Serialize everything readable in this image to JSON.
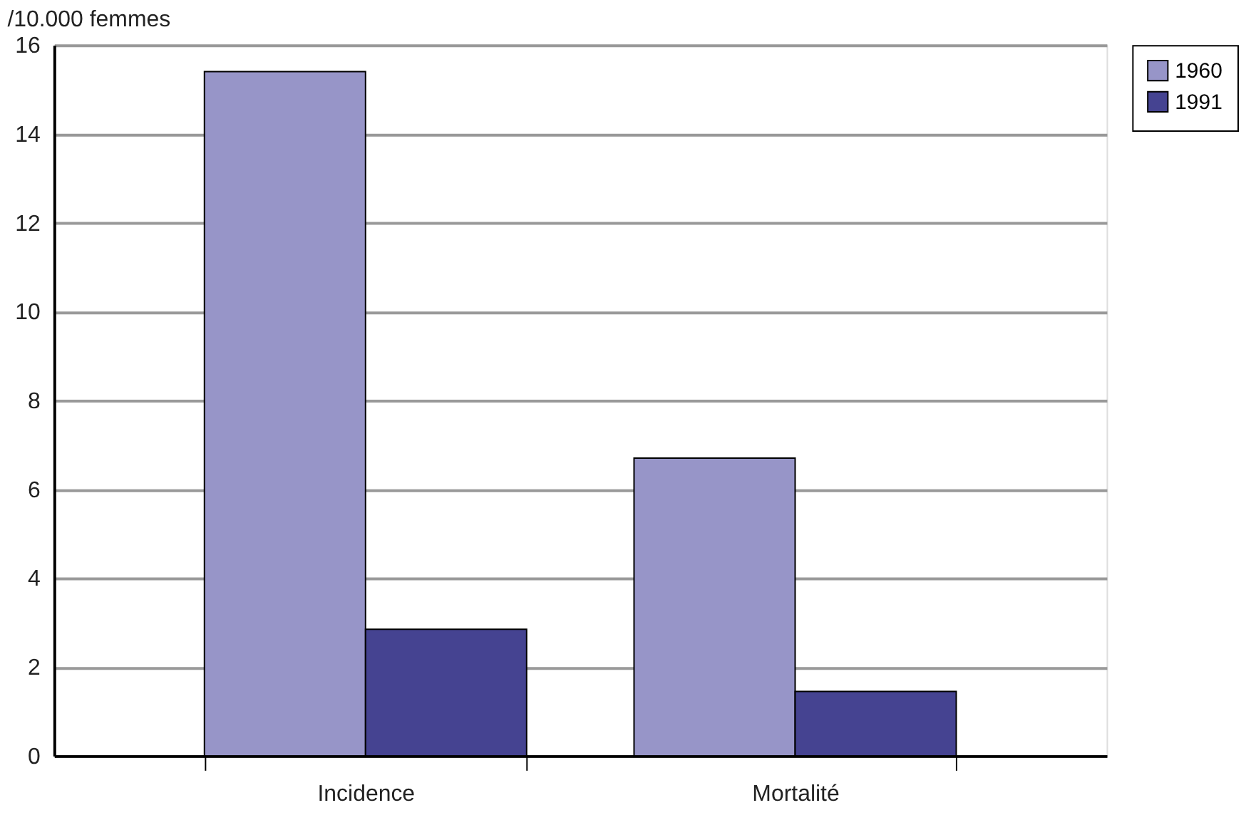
{
  "chart_data": {
    "type": "bar",
    "ylabel": "/10.000 femmes",
    "categories": [
      "Incidence",
      "Mortalité"
    ],
    "series": [
      {
        "name": "1960",
        "color": "#9795c8",
        "values": [
          15.4,
          6.7
        ]
      },
      {
        "name": "1991",
        "color": "#454391",
        "values": [
          2.85,
          1.45
        ]
      }
    ],
    "ylim": [
      0,
      16
    ],
    "yticks": [
      0,
      2,
      4,
      6,
      8,
      10,
      12,
      14,
      16
    ],
    "grid": "y",
    "legend": "right"
  }
}
